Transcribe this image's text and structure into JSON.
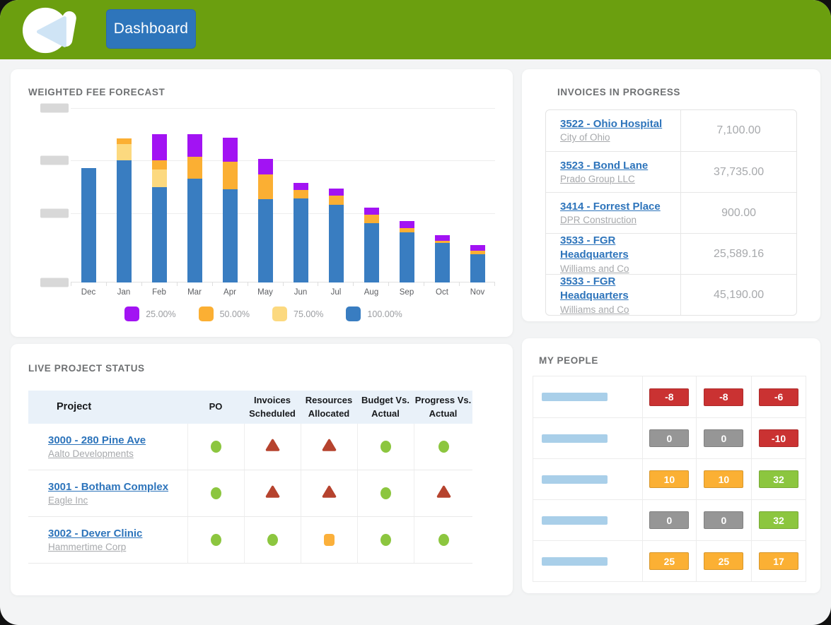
{
  "header": {
    "dashboard_button_label": "Dashboard"
  },
  "colors": {
    "header_green": "#6b9f0f",
    "button_blue": "#2e75bb",
    "link_blue": "#2d74bb",
    "status_ok_green": "#8cc63f",
    "status_alert_red": "#b6432e",
    "status_warn_orange": "#fbb03b",
    "badge_red": "#ca3232",
    "badge_gray": "#969696",
    "badge_orange": "#fbb034",
    "badge_green": "#8cc63f",
    "placeholder_blue": "#a9cfe9",
    "placeholder_gray": "#d8d8d8"
  },
  "weighted_fee_forecast": {
    "title": "WEIGHTED FEE FORECAST",
    "chart_data": {
      "type": "bar",
      "stacked": true,
      "title": "WEIGHTED FEE FORECAST",
      "categories": [
        "Dec",
        "Jan",
        "Feb",
        "Mar",
        "Apr",
        "May",
        "Jun",
        "Jul",
        "Aug",
        "Sep",
        "Oct",
        "Nov"
      ],
      "series": [
        {
          "name": "100.00%",
          "color": "#397dc1",
          "values": [
            162,
            173,
            135,
            147,
            132,
            118,
            119,
            110,
            84,
            71,
            56,
            40
          ]
        },
        {
          "name": "75.00%",
          "color": "#fcd97f",
          "values": [
            0,
            23,
            25,
            0,
            0,
            0,
            0,
            0,
            0,
            0,
            0,
            0
          ]
        },
        {
          "name": "50.00%",
          "color": "#fbaf33",
          "values": [
            0,
            8,
            13,
            31,
            39,
            35,
            12,
            13,
            12,
            6,
            3,
            5
          ]
        },
        {
          "name": "25.00%",
          "color": "#a213f3",
          "values": [
            0,
            0,
            37,
            32,
            34,
            22,
            10,
            10,
            10,
            10,
            8,
            8
          ]
        }
      ],
      "legend_order": [
        "25.00%",
        "50.00%",
        "75.00%",
        "100.00%"
      ],
      "legend_position": "bottom",
      "grid": true,
      "value_unit": "relative px (y-axis tick labels are redacted gray placeholder bars)",
      "y_tick_labels": "redacted-placeholders",
      "ylim": [
        0,
        247
      ]
    }
  },
  "invoices_in_progress": {
    "title": "INVOICES IN PROGRESS",
    "rows": [
      {
        "project": "3522 - Ohio Hospital",
        "client": "City of Ohio",
        "amount": "7,100.00"
      },
      {
        "project": "3523 - Bond Lane",
        "client": "Prado Group LLC",
        "amount": "37,735.00"
      },
      {
        "project": "3414 - Forrest Place",
        "client": "DPR Construction",
        "amount": "900.00"
      },
      {
        "project": "3533 - FGR Headquarters",
        "client": "Williams and Co",
        "amount": "25,589.16"
      },
      {
        "project": "3533 - FGR Headquarters",
        "client": "Williams and Co",
        "amount": "45,190.00"
      }
    ]
  },
  "live_project_status": {
    "title": "LIVE PROJECT STATUS",
    "columns": [
      "Project",
      "PO",
      "Invoices Scheduled",
      "Resources Allocated",
      "Budget Vs. Actual",
      "Progress Vs. Actual"
    ],
    "rows": [
      {
        "project": "3000 - 280 Pine Ave",
        "client": "Aalto Developments",
        "statuses": [
          "ok",
          "alert",
          "alert",
          "ok",
          "ok"
        ]
      },
      {
        "project": "3001 - Botham Complex",
        "client": "Eagle Inc",
        "statuses": [
          "ok",
          "alert",
          "alert",
          "ok",
          "alert"
        ]
      },
      {
        "project": "3002 - Dever Clinic",
        "client": "Hammertime Corp",
        "statuses": [
          "ok",
          "ok",
          "warn",
          "ok",
          "ok"
        ]
      }
    ]
  },
  "my_people": {
    "title": "MY PEOPLE",
    "rows": [
      {
        "badges": [
          {
            "value": "-8",
            "status": "red"
          },
          {
            "value": "-8",
            "status": "red"
          },
          {
            "value": "-6",
            "status": "red"
          }
        ]
      },
      {
        "badges": [
          {
            "value": "0",
            "status": "gray"
          },
          {
            "value": "0",
            "status": "gray"
          },
          {
            "value": "-10",
            "status": "red"
          }
        ]
      },
      {
        "badges": [
          {
            "value": "10",
            "status": "orange"
          },
          {
            "value": "10",
            "status": "orange"
          },
          {
            "value": "32",
            "status": "green"
          }
        ]
      },
      {
        "badges": [
          {
            "value": "0",
            "status": "gray"
          },
          {
            "value": "0",
            "status": "gray"
          },
          {
            "value": "32",
            "status": "green"
          }
        ]
      },
      {
        "badges": [
          {
            "value": "25",
            "status": "orange"
          },
          {
            "value": "25",
            "status": "orange"
          },
          {
            "value": "17",
            "status": "orange"
          }
        ]
      }
    ]
  }
}
